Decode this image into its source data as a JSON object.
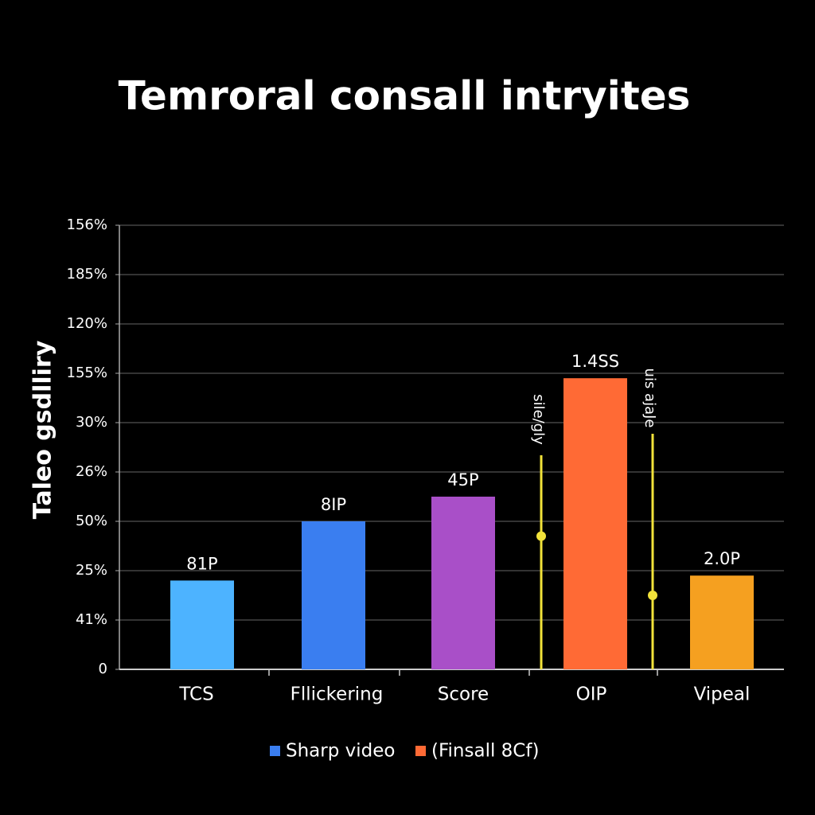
{
  "chart_data": {
    "type": "bar",
    "title": "Temroral consall intryites",
    "y_label": "Taleo gsdlliry",
    "categories": [
      "TCS",
      "Fllickering",
      "Score",
      "OIP",
      "Vipeal"
    ],
    "values": [
      1.8,
      3.0,
      3.5,
      5.9,
      1.9
    ],
    "value_labels": [
      "81P",
      "8IP",
      "45P",
      "1.4SS",
      "2.0P"
    ],
    "colors": [
      "#4db3ff",
      "#3a7ef0",
      "#a94fc8",
      "#ff6a35",
      "#f5a020"
    ],
    "ylim": [
      0,
      9
    ],
    "yticks": [
      0,
      {
        "value": 1,
        "label": "41%"
      },
      {
        "value": 2,
        "label": "25%"
      },
      {
        "value": 3,
        "label": "50%"
      },
      {
        "value": 4,
        "label": "26%"
      },
      {
        "value": 5,
        "label": "30%"
      },
      {
        "value": 6,
        "label": "155%"
      },
      {
        "value": 7,
        "label": "120%"
      },
      {
        "value": 8,
        "label": "185%"
      },
      {
        "value": 9,
        "label": "156%"
      }
    ],
    "grid": true,
    "annotations": [
      {
        "text": "sile/gly",
        "value": 2.7,
        "color": "#f2e23a"
      },
      {
        "text": "uis ajaJe",
        "value": 1.5,
        "color": "#f2e23a"
      }
    ],
    "legend": [
      {
        "name": "Sharp video",
        "color": "#3a7ef0"
      },
      {
        "name": "(Finsall 8Cf)",
        "color": "#ff6a35"
      }
    ]
  }
}
